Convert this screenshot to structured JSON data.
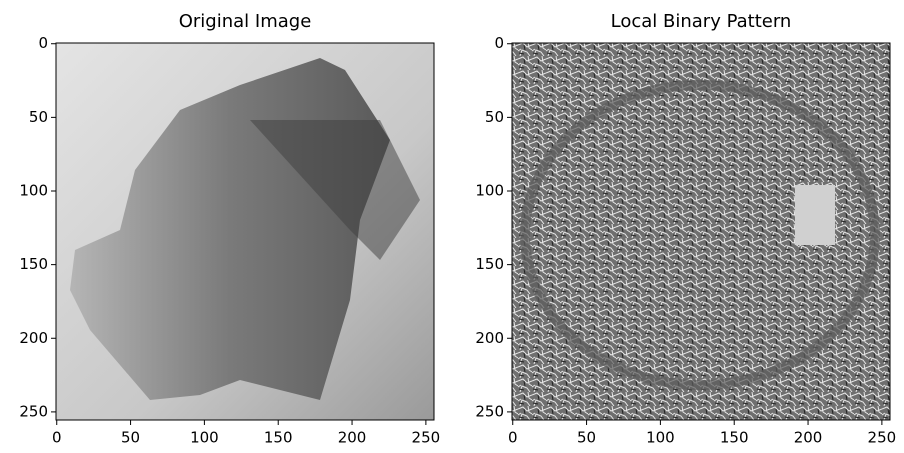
{
  "chart_data": [
    {
      "type": "image",
      "title": "Original Image",
      "xlim": [
        -0.5,
        255.5
      ],
      "ylim": [
        255.5,
        -0.5
      ],
      "xticks": [
        0,
        50,
        100,
        150,
        200,
        250
      ],
      "yticks": [
        0,
        50,
        100,
        150,
        200,
        250
      ]
    },
    {
      "type": "image",
      "title": "Local Binary Pattern",
      "xlim": [
        -0.5,
        255.5
      ],
      "ylim": [
        255.5,
        -0.5
      ],
      "xticks": [
        0,
        50,
        100,
        150,
        200,
        250
      ],
      "yticks": [
        0,
        50,
        100,
        150,
        200,
        250
      ]
    }
  ]
}
